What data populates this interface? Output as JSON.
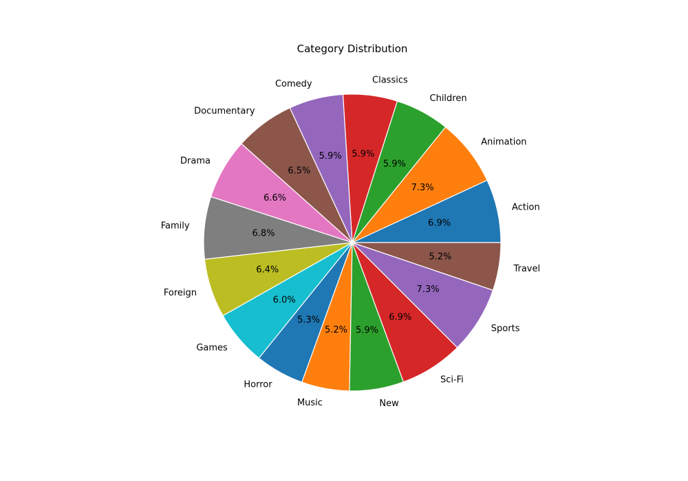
{
  "chart_data": {
    "type": "pie",
    "title": "Category Distribution",
    "start_angle_deg": 0,
    "direction": "counterclockwise",
    "slices": [
      {
        "label": "Action",
        "percent": 6.9,
        "color": "#1f77b4"
      },
      {
        "label": "Animation",
        "percent": 7.3,
        "color": "#ff7f0e"
      },
      {
        "label": "Children",
        "percent": 5.9,
        "color": "#2ca02c"
      },
      {
        "label": "Classics",
        "percent": 5.9,
        "color": "#d62728"
      },
      {
        "label": "Comedy",
        "percent": 5.9,
        "color": "#9467bd"
      },
      {
        "label": "Documentary",
        "percent": 6.5,
        "color": "#8c564b"
      },
      {
        "label": "Drama",
        "percent": 6.6,
        "color": "#e377c2"
      },
      {
        "label": "Family",
        "percent": 6.8,
        "color": "#7f7f7f"
      },
      {
        "label": "Foreign",
        "percent": 6.4,
        "color": "#bcbd22"
      },
      {
        "label": "Games",
        "percent": 6.0,
        "color": "#17becf"
      },
      {
        "label": "Horror",
        "percent": 5.3,
        "color": "#1f77b4"
      },
      {
        "label": "Music",
        "percent": 5.2,
        "color": "#ff7f0e"
      },
      {
        "label": "New",
        "percent": 5.9,
        "color": "#2ca02c"
      },
      {
        "label": "Sci-Fi",
        "percent": 6.9,
        "color": "#d62728"
      },
      {
        "label": "Sports",
        "percent": 7.3,
        "color": "#9467bd"
      },
      {
        "label": "Travel",
        "percent": 5.2,
        "color": "#8c564b"
      }
    ]
  }
}
